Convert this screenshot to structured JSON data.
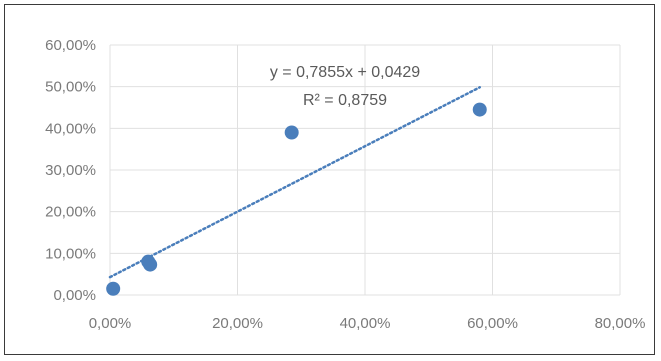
{
  "chart_data": {
    "type": "scatter",
    "title": "",
    "xlabel": "",
    "ylabel": "",
    "xlim": [
      0,
      0.8
    ],
    "ylim": [
      0,
      0.6
    ],
    "x_ticks": [
      "0,00%",
      "20,00%",
      "40,00%",
      "60,00%",
      "80,00%"
    ],
    "y_ticks": [
      "0,00%",
      "10,00%",
      "20,00%",
      "30,00%",
      "40,00%",
      "50,00%",
      "60,00%"
    ],
    "grid": true,
    "series": [
      {
        "points": [
          {
            "x": 0.005,
            "y": 0.015
          },
          {
            "x": 0.06,
            "y": 0.08
          },
          {
            "x": 0.063,
            "y": 0.073
          },
          {
            "x": 0.285,
            "y": 0.39
          },
          {
            "x": 0.58,
            "y": 0.445
          }
        ],
        "color": "#4a7ebb"
      }
    ],
    "trendline": {
      "type": "linear",
      "slope": 0.7855,
      "intercept": 0.0429,
      "x_range": [
        0,
        0.58
      ],
      "color": "#4a7ebb",
      "style": "dotted",
      "equation_label": "y = 0,7855x + 0,0429",
      "r2_label": "R² = 0,8759"
    }
  }
}
